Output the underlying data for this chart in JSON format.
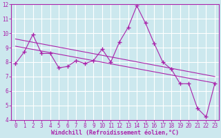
{
  "x_values": [
    0,
    1,
    2,
    3,
    4,
    5,
    6,
    7,
    8,
    9,
    10,
    11,
    12,
    13,
    14,
    15,
    16,
    17,
    18,
    19,
    20,
    21,
    22,
    23
  ],
  "y_values": [
    7.9,
    8.7,
    9.9,
    8.6,
    8.6,
    7.6,
    7.7,
    8.1,
    7.9,
    8.1,
    8.9,
    8.0,
    9.4,
    10.4,
    11.9,
    10.7,
    9.3,
    8.0,
    7.5,
    6.5,
    6.5,
    4.8,
    4.2,
    6.5
  ],
  "trend1_x": [
    0,
    23
  ],
  "trend1_y": [
    9.6,
    7.0
  ],
  "trend2_x": [
    0,
    23
  ],
  "trend2_y": [
    9.1,
    6.55
  ],
  "line_color": "#aa22aa",
  "bg_color": "#cce8ee",
  "grid_color": "#ffffff",
  "xlabel": "Windchill (Refroidissement éolien,°C)",
  "ylim": [
    4,
    12
  ],
  "xlim": [
    -0.5,
    23.5
  ],
  "yticks": [
    4,
    5,
    6,
    7,
    8,
    9,
    10,
    11,
    12
  ],
  "xticks": [
    0,
    1,
    2,
    3,
    4,
    5,
    6,
    7,
    8,
    9,
    10,
    11,
    12,
    13,
    14,
    15,
    16,
    17,
    18,
    19,
    20,
    21,
    22,
    23
  ],
  "marker": "+",
  "marker_size": 4,
  "linewidth": 0.8,
  "tick_color": "#aa22aa",
  "label_color": "#aa22aa",
  "spine_color": "#aa22aa"
}
